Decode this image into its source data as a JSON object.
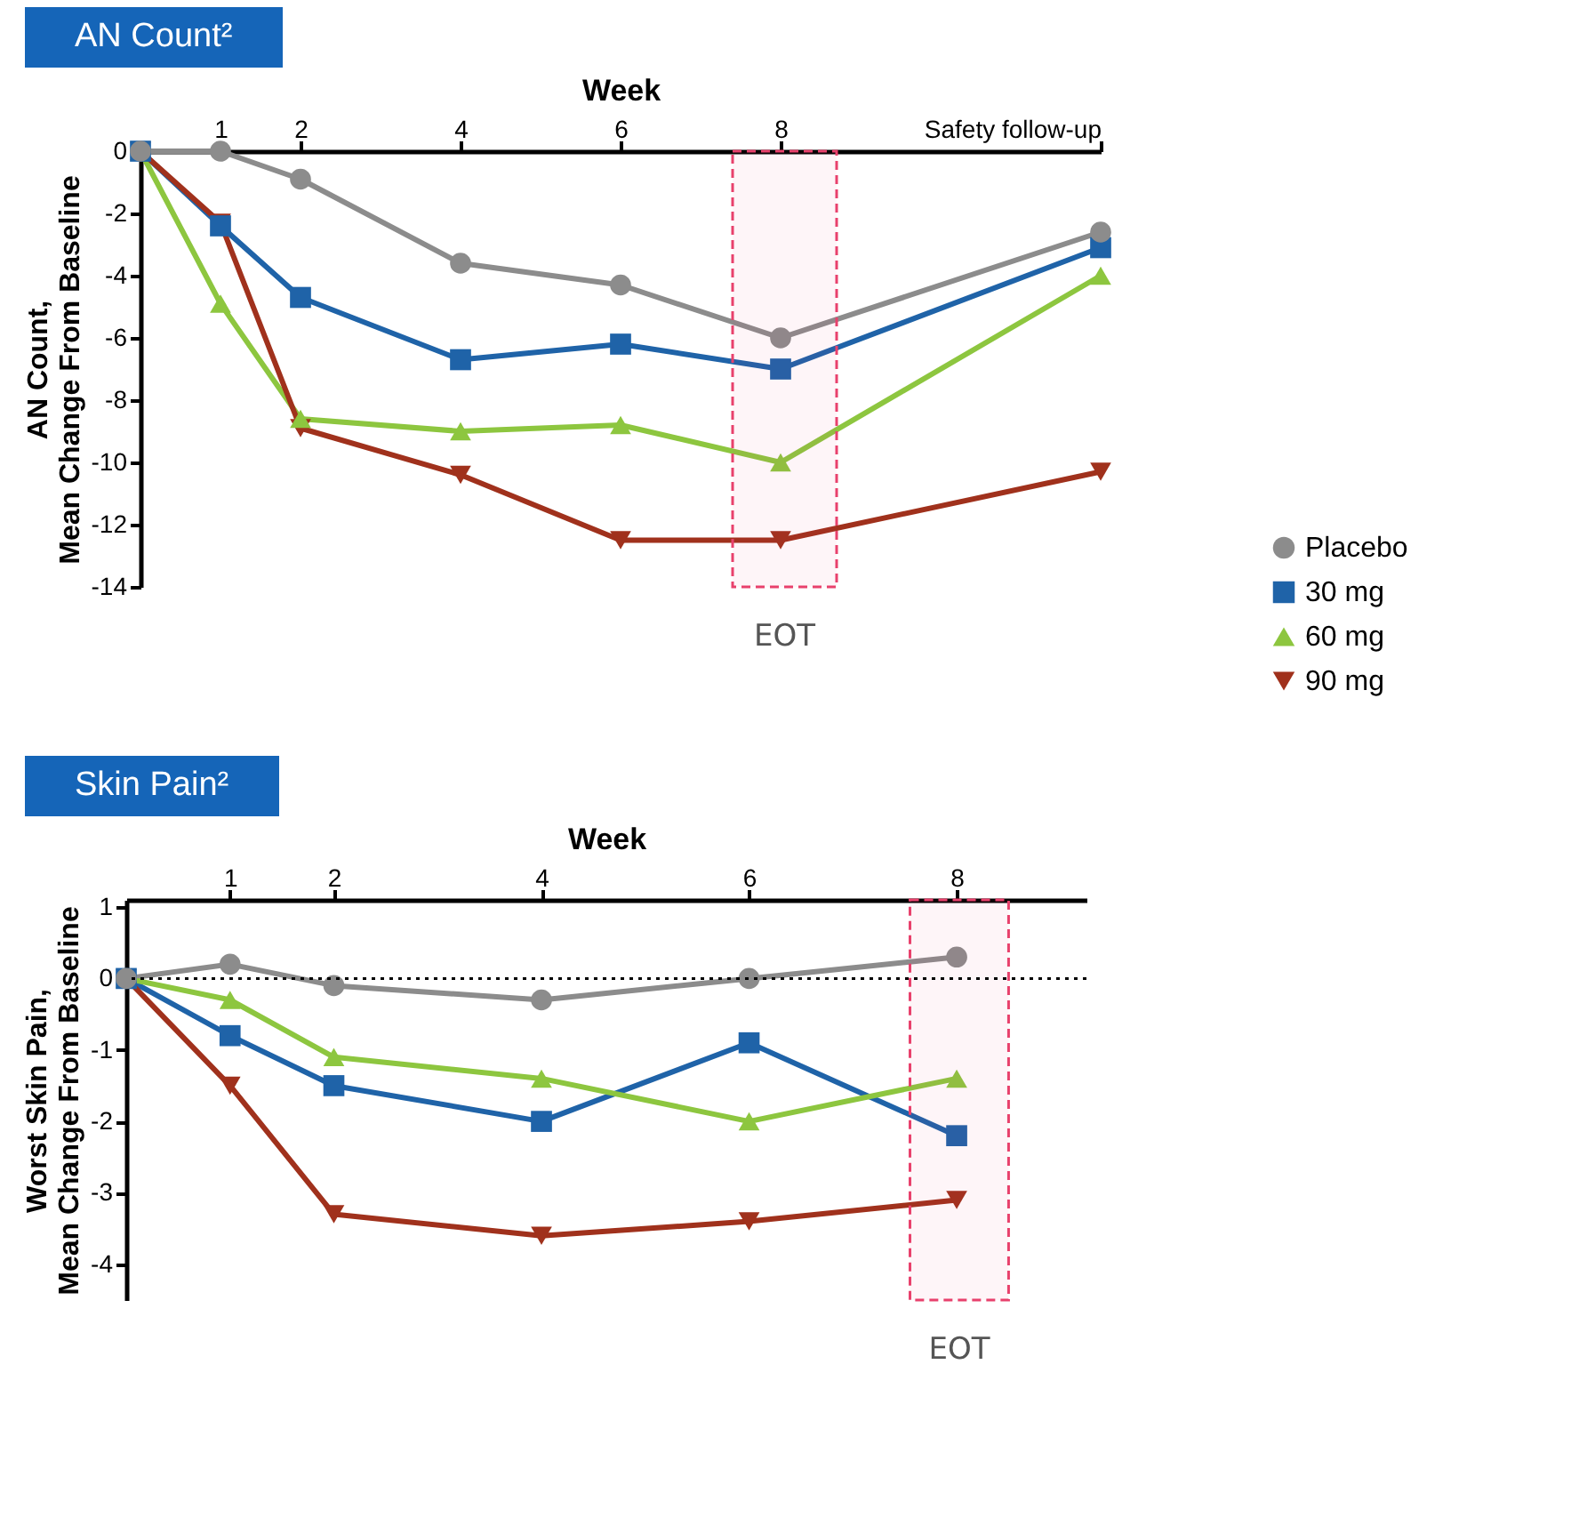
{
  "chart_data": [
    {
      "type": "line",
      "title": "AN Count²",
      "xlabel": "Week",
      "ylabel": "AN Count, Mean Change From Baseline",
      "x": [
        0,
        1,
        2,
        4,
        6,
        8,
        12
      ],
      "xlim": [
        0,
        12
      ],
      "xticks": [
        1,
        2,
        4,
        6,
        8,
        {
          "value": 12,
          "label": "Safety follow-up"
        }
      ],
      "ylim": [
        -14,
        0
      ],
      "yticks": [
        0,
        -2,
        -4,
        -6,
        -8,
        -10,
        -12,
        -14
      ],
      "legend": "right",
      "series": [
        {
          "name": "Placebo",
          "color": "#8c8c8c",
          "marker": "circle",
          "values": [
            0,
            0,
            -0.9,
            -3.6,
            -4.3,
            -6.0,
            -2.6
          ]
        },
        {
          "name": "30 mg",
          "color": "#1f63a8",
          "marker": "square",
          "values": [
            0,
            -2.4,
            -4.7,
            -6.7,
            -6.2,
            -7.0,
            -3.1
          ]
        },
        {
          "name": "60 mg",
          "color": "#8dc63f",
          "marker": "triangle",
          "values": [
            0,
            -4.9,
            -8.6,
            -9.0,
            -8.8,
            -10.0,
            -4.0
          ]
        },
        {
          "name": "90 mg",
          "color": "#a0311c",
          "marker": "triangle-down",
          "values": [
            0,
            -2.3,
            -8.9,
            -10.4,
            -12.5,
            -12.5,
            -10.3
          ]
        }
      ],
      "bands": [
        {
          "axis": "x",
          "from": 7.4,
          "to": 8.7,
          "label": "EOT",
          "color": "#e8416c"
        }
      ]
    },
    {
      "type": "line",
      "title": "Skin Pain²",
      "xlabel": "Week",
      "ylabel": "Worst Skin Pain, Mean Change From Baseline",
      "x": [
        0,
        1,
        2,
        4,
        6,
        8
      ],
      "xlim": [
        0,
        9.25
      ],
      "xticks": [
        1,
        2,
        4,
        6,
        8
      ],
      "ylim": [
        -4.5,
        1.1
      ],
      "yticks": [
        1,
        0,
        -1,
        -2,
        -3,
        -4
      ],
      "series": [
        {
          "color": "#8c8c8c",
          "marker": "circle",
          "values": [
            0,
            0.2,
            -0.1,
            -0.3,
            0.0,
            0.3
          ]
        },
        {
          "color": "#1f63a8",
          "marker": "square",
          "values": [
            0,
            -0.8,
            -1.5,
            -2.0,
            -0.9,
            -2.2
          ]
        },
        {
          "color": "#8dc63f",
          "marker": "triangle",
          "values": [
            0,
            -0.3,
            -1.1,
            -1.4,
            -2.0,
            -1.4
          ]
        },
        {
          "color": "#a0311c",
          "marker": "triangle-down",
          "values": [
            0,
            -1.5,
            -3.3,
            -3.6,
            -3.4,
            -3.1
          ]
        }
      ],
      "ref_lines": [
        {
          "axis": "y",
          "value": 0,
          "color": "#000000",
          "line_style": "dotted"
        }
      ],
      "bands": [
        {
          "axis": "x",
          "from": 7.55,
          "to": 8.5,
          "label": "EOT",
          "color": "#e8416c"
        }
      ]
    }
  ]
}
